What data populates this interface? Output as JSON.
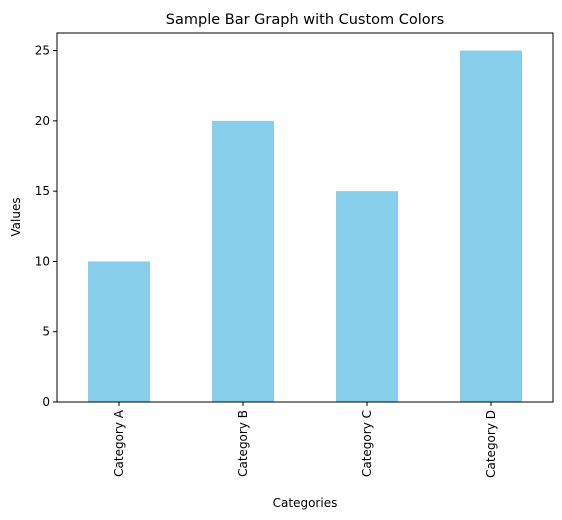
{
  "chart_data": {
    "type": "bar",
    "title": "Sample Bar Graph with Custom Colors",
    "xlabel": "Categories",
    "ylabel": "Values",
    "categories": [
      "Category A",
      "Category B",
      "Category C",
      "Category D"
    ],
    "values": [
      10,
      20,
      15,
      25
    ],
    "ylim": [
      0,
      26.25
    ],
    "yticks": [
      0,
      5,
      10,
      15,
      20,
      25
    ],
    "bar_color": "#87CEEB",
    "grid": false,
    "legend": "none",
    "xtick_rotation": "vertical"
  }
}
